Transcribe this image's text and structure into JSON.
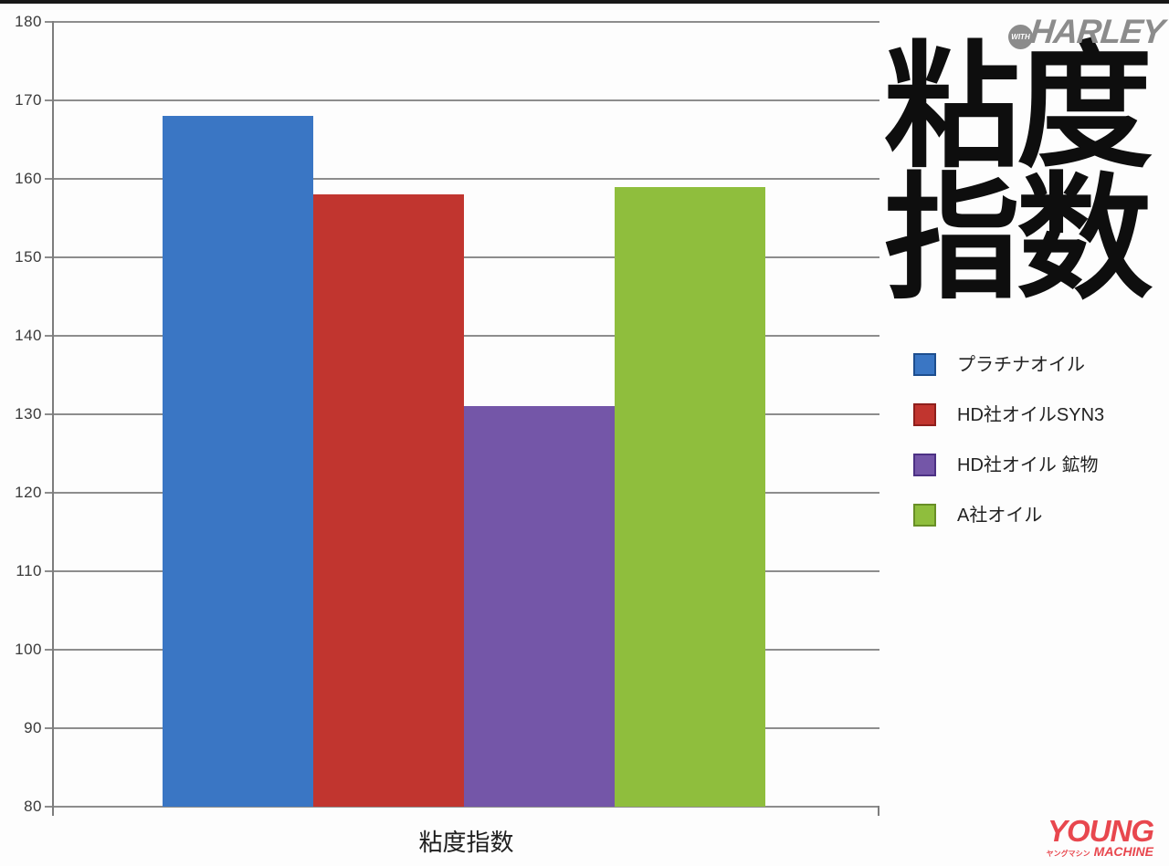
{
  "page": {
    "background_color": "#fdfdfd",
    "top_strip_color": "#181818"
  },
  "branding": {
    "with_harley": {
      "with_text": "WITH",
      "harley_text": "HARLEY",
      "color": "#8c8c8c"
    },
    "young_machine": {
      "young_text": "YOUNG",
      "katakana_text": "ヤングマシン",
      "machine_text": "MACHINE",
      "color": "#e8474e"
    }
  },
  "title": {
    "line1": "粘度",
    "line2": "指数",
    "full": "粘度指数",
    "color": "#0e0e0e"
  },
  "legend": {
    "items": [
      {
        "label": "プラチナオイル",
        "color": "#3a76c4",
        "border_color": "#1d4e8f"
      },
      {
        "label": "HD社オイルSYN3",
        "color": "#c1352f",
        "border_color": "#8f1f1c"
      },
      {
        "label": "HD社オイル 鉱物",
        "color": "#7456a8",
        "border_color": "#4c3184"
      },
      {
        "label": "A社オイル",
        "color": "#8fbe3d",
        "border_color": "#688f26"
      }
    ]
  },
  "chart_data": {
    "type": "bar",
    "title": "粘度指数",
    "categories": [
      "プラチナオイル",
      "HD社オイルSYN3",
      "HD社オイル 鉱物",
      "A社オイル"
    ],
    "values": [
      168,
      158,
      131,
      159
    ],
    "colors": [
      "#3a76c4",
      "#c1352f",
      "#7456a8",
      "#8fbe3d"
    ],
    "xlabel": "粘度指数",
    "ylabel": "",
    "ylim": [
      80,
      180
    ],
    "yticks": [
      80,
      90,
      100,
      110,
      120,
      130,
      140,
      150,
      160,
      170,
      180
    ],
    "grid": true,
    "grid_color": "#8d8d8d",
    "axis_color": "#7d7d7d",
    "tick_label_color": "#3a3a3a",
    "legend_position": "right"
  }
}
